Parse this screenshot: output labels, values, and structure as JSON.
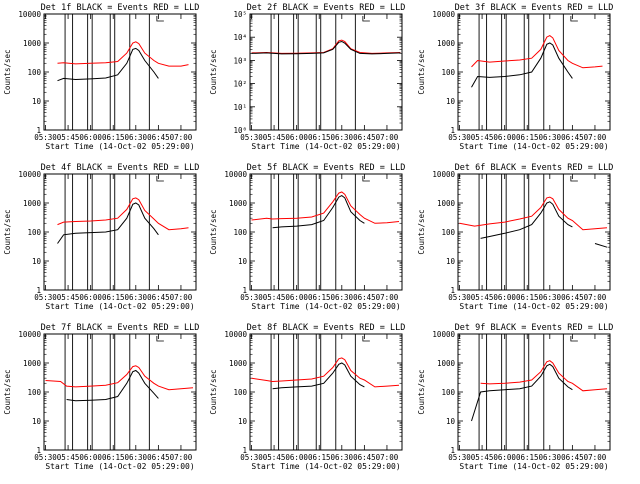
{
  "figure": {
    "x_axis_label": "Start Time (14-Oct-02 05:29:00)",
    "y_axis_label": "Counts/sec",
    "x_tick_labels": [
      "05:30",
      "05:45",
      "06:00",
      "06:15",
      "06:30",
      "06:45",
      "07:00"
    ]
  },
  "colors": {
    "black_series": "#000000",
    "red_series": "#ff0000",
    "background": "#ffffff"
  },
  "chart_data": [
    {
      "type": "line",
      "title": "Det 1f  BLACK = Events  RED = LLD",
      "xlabel": "Start Time (14-Oct-02 05:29:00)",
      "ylabel": "Counts/sec",
      "xlim": [
        "05:29",
        "07:10"
      ],
      "ylim": [
        1,
        10000
      ],
      "yscale": "log",
      "yticks": [
        "1",
        "10",
        "100",
        "1000",
        "10000"
      ],
      "x": [
        "05:38",
        "05:42",
        "05:50",
        "06:00",
        "06:10",
        "06:18",
        "06:24",
        "06:28",
        "06:30",
        "06:32",
        "06:36",
        "06:42",
        "06:45",
        "06:52",
        "07:00",
        "07:05"
      ],
      "series": [
        {
          "name": "Events",
          "color": "#000000",
          "values": [
            50,
            60,
            55,
            58,
            62,
            80,
            200,
            600,
            650,
            550,
            250,
            100,
            60,
            null,
            null,
            null
          ]
        },
        {
          "name": "LLD",
          "color": "#ff0000",
          "values": [
            200,
            210,
            190,
            200,
            210,
            230,
            450,
            1000,
            1100,
            950,
            450,
            250,
            200,
            160,
            160,
            180
          ]
        }
      ]
    },
    {
      "type": "line",
      "title": "Det 2f  BLACK = Events  RED = LLD",
      "xlabel": "Start Time (14-Oct-02 05:29:00)",
      "ylabel": "Counts/sec",
      "xlim": [
        "05:29",
        "07:10"
      ],
      "ylim": [
        1,
        100000
      ],
      "yscale": "log",
      "yticks": [
        "10⁰",
        "10¹",
        "10²",
        "10³",
        "10⁴",
        "10⁵"
      ],
      "x": [
        "05:30",
        "05:40",
        "05:50",
        "06:00",
        "06:10",
        "06:18",
        "06:24",
        "06:28",
        "06:30",
        "06:32",
        "06:36",
        "06:42",
        "06:50",
        "07:00",
        "07:09"
      ],
      "series": [
        {
          "name": "Events",
          "color": "#000000",
          "values": [
            2000,
            2100,
            1900,
            1950,
            2000,
            2100,
            3000,
            6000,
            6500,
            5500,
            3000,
            2000,
            1900,
            2000,
            2100
          ]
        },
        {
          "name": "LLD",
          "color": "#ff0000",
          "values": [
            2100,
            2200,
            2000,
            2050,
            2100,
            2200,
            3200,
            7000,
            7500,
            6500,
            3200,
            2200,
            2000,
            2100,
            2200
          ]
        }
      ]
    },
    {
      "type": "line",
      "title": "Det 3f  BLACK = Events  RED = LLD",
      "xlabel": "Start Time (14-Oct-02 05:29:00)",
      "ylabel": "Counts/sec",
      "xlim": [
        "05:29",
        "07:10"
      ],
      "ylim": [
        1,
        10000
      ],
      "yscale": "log",
      "yticks": [
        "1",
        "10",
        "100",
        "1000",
        "10000"
      ],
      "x": [
        "05:38",
        "05:42",
        "05:50",
        "06:00",
        "06:10",
        "06:18",
        "06:24",
        "06:28",
        "06:30",
        "06:32",
        "06:36",
        "06:42",
        "06:45",
        "06:52",
        "07:00",
        "07:05"
      ],
      "series": [
        {
          "name": "Events",
          "color": "#000000",
          "values": [
            30,
            70,
            65,
            70,
            80,
            100,
            300,
            900,
            1000,
            850,
            300,
            100,
            60,
            null,
            null,
            null
          ]
        },
        {
          "name": "LLD",
          "color": "#ff0000",
          "values": [
            150,
            250,
            220,
            240,
            260,
            300,
            600,
            1600,
            1800,
            1500,
            550,
            250,
            200,
            140,
            150,
            160
          ]
        }
      ]
    },
    {
      "type": "line",
      "title": "Det 4f  BLACK = Events  RED = LLD",
      "xlabel": "Start Time (14-Oct-02 05:29:00)",
      "ylabel": "Counts/sec",
      "xlim": [
        "05:29",
        "07:10"
      ],
      "ylim": [
        1,
        10000
      ],
      "yscale": "log",
      "yticks": [
        "1",
        "10",
        "100",
        "1000",
        "10000"
      ],
      "x": [
        "05:38",
        "05:42",
        "05:50",
        "06:00",
        "06:10",
        "06:18",
        "06:24",
        "06:28",
        "06:30",
        "06:32",
        "06:36",
        "06:42",
        "06:45",
        "06:52",
        "07:00",
        "07:05"
      ],
      "series": [
        {
          "name": "Events",
          "color": "#000000",
          "values": [
            40,
            80,
            90,
            95,
            100,
            120,
            300,
            900,
            1000,
            850,
            300,
            130,
            80,
            null,
            null,
            null
          ]
        },
        {
          "name": "LLD",
          "color": "#ff0000",
          "values": [
            180,
            220,
            230,
            240,
            260,
            300,
            600,
            1400,
            1500,
            1300,
            550,
            280,
            200,
            120,
            130,
            140
          ]
        }
      ]
    },
    {
      "type": "line",
      "title": "Det 5f  BLACK = Events  RED = LLD",
      "xlabel": "Start Time (14-Oct-02 05:29:00)",
      "ylabel": "Counts/sec",
      "xlim": [
        "05:29",
        "07:10"
      ],
      "ylim": [
        1,
        10000
      ],
      "yscale": "log",
      "yticks": [
        "1",
        "10",
        "100",
        "1000",
        "10000"
      ],
      "x": [
        "05:30",
        "05:40",
        "05:44",
        "05:50",
        "06:00",
        "06:10",
        "06:18",
        "06:24",
        "06:28",
        "06:30",
        "06:32",
        "06:36",
        "06:42",
        "06:45",
        "06:52",
        "07:00",
        "07:08"
      ],
      "series": [
        {
          "name": "Events",
          "color": "#000000",
          "values": [
            null,
            null,
            140,
            150,
            160,
            180,
            250,
            700,
            1600,
            1800,
            1500,
            500,
            250,
            200,
            null,
            null,
            null
          ]
        },
        {
          "name": "LLD",
          "color": "#ff0000",
          "values": [
            260,
            300,
            280,
            290,
            300,
            330,
            450,
            1100,
            2200,
            2400,
            2000,
            800,
            400,
            300,
            200,
            210,
            230
          ]
        }
      ]
    },
    {
      "type": "line",
      "title": "Det 6f  BLACK = Events  RED = LLD",
      "xlabel": "Start Time (14-Oct-02 05:29:00)",
      "ylabel": "Counts/sec",
      "xlim": [
        "05:29",
        "07:10"
      ],
      "ylim": [
        1,
        10000
      ],
      "yscale": "log",
      "yticks": [
        "1",
        "10",
        "100",
        "1000",
        "10000"
      ],
      "x": [
        "05:30",
        "05:40",
        "05:44",
        "05:50",
        "06:00",
        "06:10",
        "06:18",
        "06:24",
        "06:28",
        "06:30",
        "06:32",
        "06:36",
        "06:42",
        "06:45",
        "06:52",
        "07:00",
        "07:08"
      ],
      "series": [
        {
          "name": "Events",
          "color": "#000000",
          "values": [
            null,
            null,
            60,
            70,
            90,
            120,
            180,
            450,
            1000,
            1100,
            900,
            350,
            180,
            150,
            null,
            40,
            30
          ]
        },
        {
          "name": "LLD",
          "color": "#ff0000",
          "values": [
            200,
            160,
            170,
            190,
            220,
            280,
            350,
            700,
            1500,
            1600,
            1400,
            600,
            300,
            250,
            120,
            130,
            140
          ]
        }
      ]
    },
    {
      "type": "line",
      "title": "Det 7f  BLACK = Events  RED = LLD",
      "xlabel": "Start Time (14-Oct-02 05:29:00)",
      "ylabel": "Counts/sec",
      "xlim": [
        "05:29",
        "07:10"
      ],
      "ylim": [
        1,
        10000
      ],
      "yscale": "log",
      "yticks": [
        "1",
        "10",
        "100",
        "1000",
        "10000"
      ],
      "x": [
        "05:30",
        "05:40",
        "05:44",
        "05:50",
        "06:00",
        "06:10",
        "06:18",
        "06:24",
        "06:28",
        "06:30",
        "06:32",
        "06:36",
        "06:42",
        "06:45",
        "06:52",
        "07:00",
        "07:08"
      ],
      "series": [
        {
          "name": "Events",
          "color": "#000000",
          "values": [
            null,
            null,
            55,
            50,
            52,
            55,
            70,
            200,
            500,
            550,
            450,
            200,
            90,
            60,
            null,
            null,
            null
          ]
        },
        {
          "name": "LLD",
          "color": "#ff0000",
          "values": [
            250,
            230,
            160,
            150,
            160,
            170,
            210,
            400,
            750,
            800,
            700,
            350,
            200,
            160,
            120,
            130,
            140
          ]
        }
      ]
    },
    {
      "type": "line",
      "title": "Det 8f  BLACK = Events  RED = LLD",
      "xlabel": "Start Time (14-Oct-02 05:29:00)",
      "ylabel": "Counts/sec",
      "xlim": [
        "05:29",
        "07:10"
      ],
      "ylim": [
        1,
        10000
      ],
      "yscale": "log",
      "yticks": [
        "1",
        "10",
        "100",
        "1000",
        "10000"
      ],
      "x": [
        "05:30",
        "05:40",
        "05:44",
        "05:50",
        "06:00",
        "06:10",
        "06:18",
        "06:24",
        "06:28",
        "06:30",
        "06:32",
        "06:36",
        "06:42",
        "06:45",
        "06:52",
        "07:00",
        "07:08"
      ],
      "series": [
        {
          "name": "Events",
          "color": "#000000",
          "values": [
            null,
            null,
            130,
            140,
            150,
            160,
            200,
            450,
            900,
            1000,
            850,
            350,
            180,
            150,
            null,
            null,
            null
          ]
        },
        {
          "name": "LLD",
          "color": "#ff0000",
          "values": [
            300,
            250,
            230,
            240,
            260,
            280,
            350,
            700,
            1400,
            1500,
            1300,
            550,
            300,
            260,
            150,
            160,
            170
          ]
        }
      ]
    },
    {
      "type": "line",
      "title": "Det 9f  BLACK = Events  RED = LLD",
      "xlabel": "Start Time (14-Oct-02 05:29:00)",
      "ylabel": "Counts/sec",
      "xlim": [
        "05:29",
        "07:10"
      ],
      "ylim": [
        1,
        10000
      ],
      "yscale": "log",
      "yticks": [
        "1",
        "10",
        "100",
        "1000",
        "10000"
      ],
      "x": [
        "05:30",
        "05:38",
        "05:44",
        "05:50",
        "06:00",
        "06:10",
        "06:18",
        "06:24",
        "06:28",
        "06:30",
        "06:32",
        "06:36",
        "06:42",
        "06:45",
        "06:52",
        "07:00",
        "07:08"
      ],
      "series": [
        {
          "name": "Events",
          "color": "#000000",
          "values": [
            null,
            10,
            100,
            110,
            120,
            130,
            160,
            350,
            800,
            900,
            750,
            300,
            150,
            120,
            null,
            null,
            null
          ]
        },
        {
          "name": "LLD",
          "color": "#ff0000",
          "values": [
            null,
            null,
            200,
            190,
            200,
            220,
            260,
            500,
            1100,
            1200,
            1000,
            450,
            230,
            200,
            110,
            120,
            130
          ]
        }
      ]
    }
  ]
}
